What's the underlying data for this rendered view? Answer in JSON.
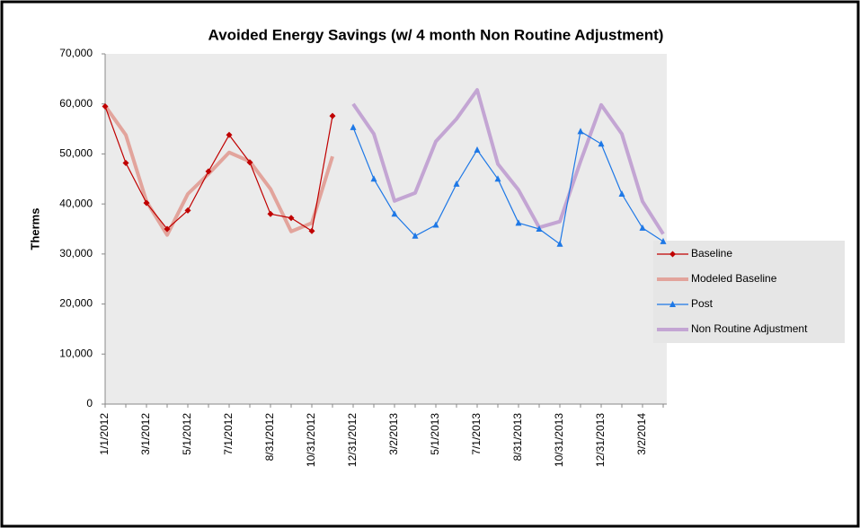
{
  "chart_data": {
    "type": "line",
    "title": "Avoided Energy Savings (w/ 4 month Non Routine Adjustment)",
    "y_label": "Therms",
    "categories": [
      "1/1/2012",
      null,
      "3/1/2012",
      null,
      "5/1/2012",
      null,
      "7/1/2012",
      null,
      "8/31/2012",
      null,
      "10/31/2012",
      null,
      "12/31/2012",
      null,
      "3/2/2013",
      null,
      "5/1/2013",
      null,
      "7/1/2013",
      null,
      "8/31/2013",
      null,
      "10/31/2013",
      null,
      "12/31/2013",
      null,
      "3/2/2014",
      null
    ],
    "series": [
      {
        "name": "Baseline",
        "color": "#c00000",
        "marker": "diamond",
        "width": 1.2,
        "values": [
          59500,
          48200,
          40200,
          35000,
          38700,
          46500,
          53800,
          48300,
          38000,
          37200,
          34600,
          57600,
          null,
          null,
          null,
          null,
          null,
          null,
          null,
          null,
          null,
          null,
          null,
          null,
          null,
          null,
          null,
          null
        ]
      },
      {
        "name": "Modeled Baseline",
        "color": "#e2a49c",
        "marker": "none",
        "width": 4,
        "values": [
          59600,
          53800,
          40500,
          33800,
          42000,
          46000,
          50300,
          48500,
          43000,
          34500,
          36200,
          49500,
          null,
          null,
          null,
          null,
          null,
          null,
          null,
          null,
          null,
          null,
          null,
          null,
          null,
          null,
          null,
          null
        ]
      },
      {
        "name": "Post",
        "color": "#1e78e6",
        "marker": "triangle",
        "width": 1.2,
        "values": [
          null,
          null,
          null,
          null,
          null,
          null,
          null,
          null,
          null,
          null,
          null,
          null,
          55300,
          45000,
          38000,
          33600,
          35800,
          44000,
          50800,
          45000,
          36200,
          35000,
          32000,
          54500,
          52000,
          42000,
          35200,
          32500
        ]
      },
      {
        "name": "Non Routine Adjustment",
        "color": "#c3a5d3",
        "marker": "none",
        "width": 4,
        "values": [
          null,
          null,
          null,
          null,
          null,
          null,
          null,
          null,
          null,
          null,
          null,
          null,
          60000,
          54000,
          40600,
          42200,
          52500,
          57000,
          62800,
          48000,
          42800,
          35300,
          36500,
          48500,
          59800,
          54000,
          40500,
          34000
        ]
      }
    ],
    "ylim": [
      0,
      70000
    ],
    "yticks": [
      0,
      {
        "value": 10000,
        "label": "10,000"
      },
      {
        "value": 20000,
        "label": "20,000"
      },
      {
        "value": 30000,
        "label": "30,000"
      },
      {
        "value": 40000,
        "label": "40,000"
      },
      {
        "value": 50000,
        "label": "50,000"
      },
      {
        "value": 60000,
        "label": "60,000"
      },
      {
        "value": 70000,
        "label": "70,000"
      }
    ],
    "grid": false,
    "legend": "right"
  }
}
